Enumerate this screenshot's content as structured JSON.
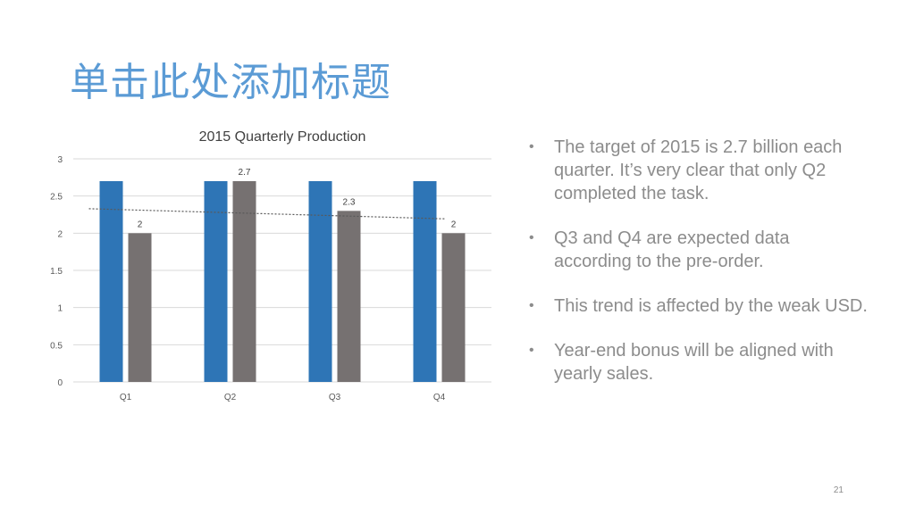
{
  "slide": {
    "title": "单击此处添加标题",
    "page_number": "21",
    "bullets": [
      "The target of 2015 is 2.7 billion each quarter. It’s very clear that only Q2 completed the task.",
      "Q3 and Q4 are expected data according to the pre-order.",
      " This trend is affected by the weak USD.",
      "Year-end bonus will be aligned with yearly sales."
    ]
  },
  "colors": {
    "title": "#5b9bd5",
    "series_target": "#2e75b6",
    "series_actual": "#767171",
    "text": "#8c8c8c",
    "gridline": "#d9d9d9"
  },
  "chart_data": {
    "type": "bar",
    "title": "2015 Quarterly Production",
    "categories": [
      "Q1",
      "Q2",
      "Q3",
      "Q4"
    ],
    "series": [
      {
        "values": [
          2.7,
          2.7,
          2.7,
          2.7
        ]
      },
      {
        "values": [
          2,
          2.7,
          2.3,
          2
        ],
        "data_labels": [
          "2",
          "2.7",
          "2.3",
          "2"
        ]
      }
    ],
    "trendline": {
      "type": "linear",
      "series_index": 1,
      "style": "dotted"
    },
    "ylim": [
      0,
      3
    ],
    "yticks": [
      "0",
      "0.5",
      "1",
      "1.5",
      "2",
      "2.5",
      "3"
    ],
    "xlabel": "",
    "ylabel": "",
    "grid": true,
    "legend": "none"
  }
}
